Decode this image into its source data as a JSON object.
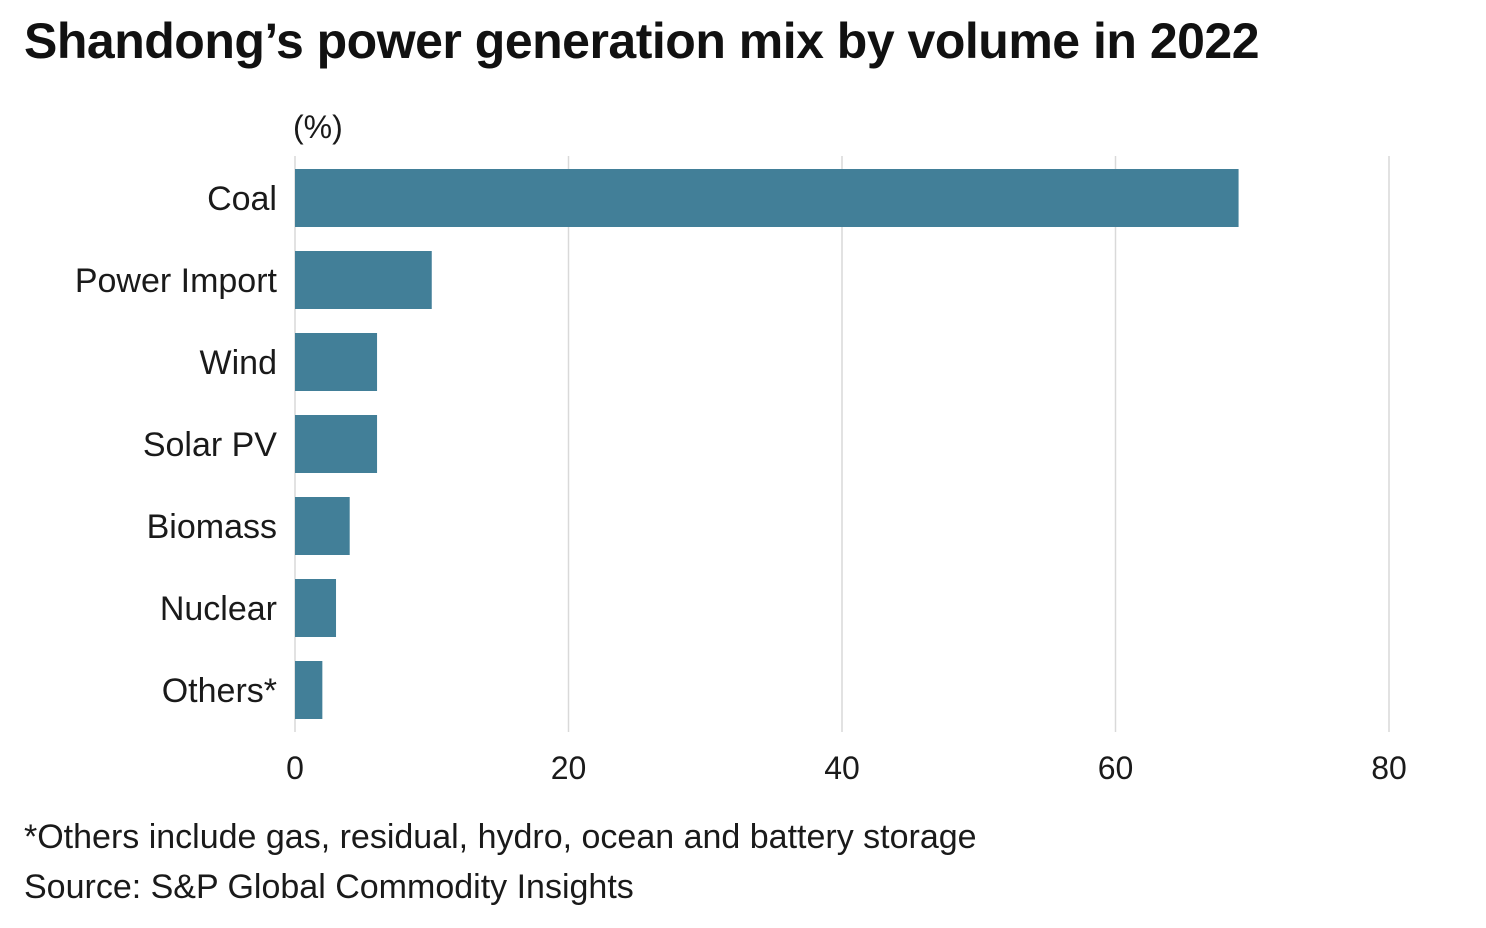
{
  "title": "Shandong’s power generation mix by volume in 2022",
  "footnote": "*Others include gas, residual, hydro, ocean and battery storage",
  "source": "Source: S&P Global Commodity Insights",
  "colors": {
    "bar": "#427f98",
    "grid": "#d9d9d9",
    "text": "#1a1a1a"
  },
  "chart_data": {
    "type": "bar",
    "orientation": "horizontal",
    "title": "Shandong’s power generation mix by volume in 2022",
    "unit_label": "(%)",
    "categories": [
      "Coal",
      "Power Import",
      "Wind",
      "Solar PV",
      "Biomass",
      "Nuclear",
      "Others*"
    ],
    "values": [
      69,
      10,
      6,
      6,
      4,
      3,
      2
    ],
    "xlim": [
      0,
      80
    ],
    "xticks": [
      "0",
      "20",
      "40",
      "60",
      "80"
    ],
    "xtick_values": [
      0,
      20,
      40,
      60,
      80
    ],
    "grid": true,
    "legend": "none"
  }
}
